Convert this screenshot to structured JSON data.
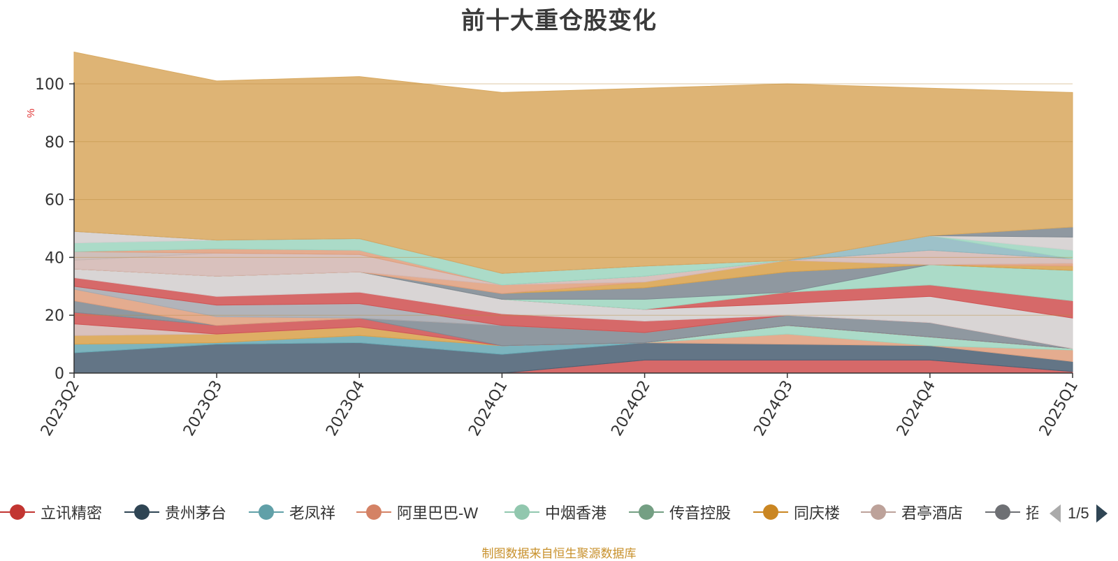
{
  "title": "前十大重仓股变化",
  "source_note": "制图数据来自恒生聚源数据库",
  "legend_pager": {
    "page_text": "1/5"
  },
  "chart_data": {
    "type": "area",
    "stacked": true,
    "title": "前十大重仓股变化",
    "ylabel": "%",
    "ylim": [
      0,
      100
    ],
    "yticks": [
      0,
      20,
      40,
      60,
      80,
      100
    ],
    "grid": true,
    "legend_position": "bottom",
    "categories": [
      "2023Q2",
      "2023Q3",
      "2023Q4",
      "2024Q1",
      "2024Q2",
      "2024Q3",
      "2024Q4",
      "2025Q1"
    ],
    "series": [
      {
        "name": "立讯精密",
        "color": "#d05454",
        "values": [
          0,
          0,
          0,
          0,
          4.5,
          4.5,
          4.5,
          0.5
        ]
      },
      {
        "name": "贵州茅台",
        "color": "#4d6275",
        "values": [
          7,
          10,
          10.5,
          6.5,
          6,
          5.5,
          5,
          3.5
        ]
      },
      {
        "name": "老凤祥",
        "color": "#6aaab5",
        "values": [
          3,
          0.5,
          2.5,
          3,
          0,
          0,
          0,
          0
        ]
      },
      {
        "name": "阿里巴巴-W",
        "color": "#e0a080",
        "values": [
          0,
          0,
          0,
          0,
          0,
          3.5,
          0,
          4
        ]
      },
      {
        "name": "中烟香港",
        "color": "#9fd6c0",
        "values": [
          0,
          0,
          0,
          0,
          0,
          3,
          3,
          0.5
        ]
      },
      {
        "name": "传音控股",
        "color": "#85a994",
        "values": [
          0,
          0,
          0,
          0,
          0,
          0,
          0,
          0
        ]
      },
      {
        "name": "同庆楼",
        "color": "#d9a34e",
        "values": [
          3,
          3,
          3,
          0,
          0,
          0,
          0,
          0
        ]
      }
    ],
    "shading_bands": [
      {
        "color": "#d4b8b4",
        "values": [
          4,
          0,
          0,
          0,
          0,
          0,
          0,
          0
        ]
      },
      {
        "color": "#d05454",
        "values": [
          4,
          3,
          3,
          0,
          0,
          0,
          0,
          0
        ]
      },
      {
        "color": "#808a93",
        "values": [
          4,
          0,
          0,
          7,
          3.5,
          3.5,
          5,
          0
        ]
      },
      {
        "color": "#e0a080",
        "values": [
          4,
          3,
          0,
          0,
          0,
          0,
          0,
          0
        ]
      },
      {
        "color": "#a7aab0",
        "values": [
          1,
          4,
          5,
          0,
          0,
          0,
          0,
          0
        ]
      },
      {
        "color": "#d05454",
        "values": [
          3,
          3,
          4,
          4,
          4,
          0,
          0,
          0
        ]
      },
      {
        "color": "#d4cfcf",
        "values": [
          3,
          7,
          7,
          5,
          4,
          4,
          9,
          10.5
        ]
      },
      {
        "color": "#d05454",
        "values": [
          0,
          0,
          0,
          0,
          0,
          4,
          4,
          6
        ]
      },
      {
        "color": "#9fd6c0",
        "values": [
          0,
          0,
          0,
          0,
          3.5,
          0,
          7,
          10.5
        ]
      },
      {
        "color": "#808a93",
        "values": [
          0,
          0,
          0,
          2,
          4,
          7,
          0,
          0
        ]
      },
      {
        "color": "#d9a34e",
        "values": [
          0,
          0,
          0,
          0,
          2,
          4,
          0,
          1.5
        ]
      },
      {
        "color": "#e0a080",
        "values": [
          0,
          0,
          0,
          3,
          0,
          0,
          0,
          1
        ]
      },
      {
        "color": "#d4b8b4",
        "values": [
          3,
          8,
          6,
          0,
          2,
          0,
          5,
          1.5
        ]
      },
      {
        "color": "#c8b6b2",
        "values": [
          3,
          0,
          0,
          0,
          0,
          0,
          0,
          0
        ]
      },
      {
        "color": "#e0a080",
        "values": [
          0,
          1.5,
          1.5,
          0,
          0,
          0,
          0,
          0
        ]
      },
      {
        "color": "#8fb8c2",
        "values": [
          0,
          0,
          0,
          0,
          0,
          0,
          5,
          0
        ]
      },
      {
        "color": "#9fd6c0",
        "values": [
          3,
          3,
          4,
          4,
          3.5,
          0,
          0,
          3
        ]
      },
      {
        "color": "#d4cfcf",
        "values": [
          4,
          0,
          0,
          0,
          0,
          0,
          0,
          4.5
        ]
      },
      {
        "color": "#808a93",
        "values": [
          0,
          0,
          0,
          0,
          0,
          0,
          0,
          3.5
        ]
      },
      {
        "color": "#d9aa62",
        "values": [
          62,
          55,
          56,
          62.5,
          61.5,
          61,
          51,
          46.5
        ]
      }
    ]
  },
  "legend_items": [
    {
      "name": "立讯精密",
      "color": "#c23531"
    },
    {
      "name": "贵州茅台",
      "color": "#2f4554"
    },
    {
      "name": "老凤祥",
      "color": "#61a0a8"
    },
    {
      "name": "阿里巴巴-W",
      "color": "#d48265"
    },
    {
      "name": "中烟香港",
      "color": "#91c7ae"
    },
    {
      "name": "传音控股",
      "color": "#749f83"
    },
    {
      "name": "同庆楼",
      "color": "#ca8622"
    },
    {
      "name": "君亭酒店",
      "color": "#bda29a"
    },
    {
      "name": "招",
      "color": "#6e7074"
    }
  ]
}
